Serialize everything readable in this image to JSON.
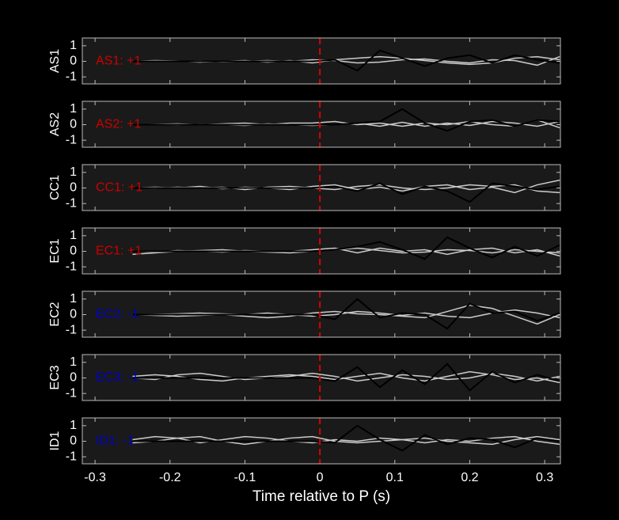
{
  "chart_data": [
    {
      "type": "line",
      "ylabel": "AS1",
      "annotation": "AS1: +1",
      "annotation_color": "#cc0000",
      "vline": 0,
      "x": [
        -0.25,
        -0.22,
        -0.19,
        -0.16,
        -0.13,
        -0.1,
        -0.07,
        -0.04,
        -0.01,
        0.02,
        0.05,
        0.08,
        0.11,
        0.14,
        0.17,
        0.2,
        0.23,
        0.26,
        0.29,
        0.32
      ],
      "series": [
        {
          "color": "#cccccc",
          "values": [
            0,
            0.05,
            0.02,
            -0.05,
            0,
            0.05,
            -0.05,
            0.05,
            -0.1,
            0.1,
            0.2,
            0.3,
            0.2,
            0.05,
            -0.1,
            -0.2,
            -0.1,
            0.2,
            0.3,
            0.1
          ]
        },
        {
          "color": "#cccccc",
          "values": [
            0,
            0.02,
            0,
            0.02,
            -0.03,
            0,
            0.05,
            0,
            0.1,
            0.05,
            -0.1,
            -0.05,
            0.1,
            0.15,
            0,
            -0.1,
            0.1,
            0.05,
            -0.25,
            0.3
          ]
        },
        {
          "color": "#000000",
          "values": [
            0,
            0,
            0,
            0,
            0,
            0,
            0,
            0,
            0,
            0.1,
            -0.6,
            0.7,
            0.2,
            -0.3,
            0.2,
            0.4,
            -0.1,
            0.4,
            0.1,
            -0.1
          ]
        }
      ],
      "xlim": [
        -0.317,
        0.321
      ],
      "xticks": [
        -0.3,
        -0.2,
        -0.1,
        0,
        0.1,
        0.2,
        0.3
      ],
      "ylim": [
        -1.45,
        1.5
      ],
      "yticks": [
        -1,
        0,
        1
      ]
    },
    {
      "type": "line",
      "ylabel": "AS2",
      "annotation": "AS2: +1",
      "annotation_color": "#cc0000",
      "vline": 0,
      "x": [
        -0.25,
        -0.22,
        -0.19,
        -0.16,
        -0.13,
        -0.1,
        -0.07,
        -0.04,
        -0.01,
        0.02,
        0.05,
        0.08,
        0.11,
        0.14,
        0.17,
        0.2,
        0.23,
        0.26,
        0.29,
        0.32
      ],
      "series": [
        {
          "color": "#cccccc",
          "values": [
            0,
            0.02,
            0.05,
            0,
            0.05,
            0.1,
            0,
            0.1,
            0.1,
            0.2,
            0,
            0.1,
            -0.1,
            0.1,
            0,
            0.2,
            0,
            -0.1,
            0.3,
            -0.2
          ]
        },
        {
          "color": "#cccccc",
          "values": [
            0,
            0,
            -0.02,
            0.02,
            0,
            -0.05,
            0.05,
            0,
            -0.05,
            0,
            0.1,
            -0.1,
            0.15,
            -0.1,
            0.1,
            -0.05,
            0.2,
            0.1,
            -0.1,
            0.2
          ]
        },
        {
          "color": "#000000",
          "values": [
            0,
            0,
            0,
            0,
            0,
            0,
            0,
            0,
            0,
            0,
            0.1,
            0.2,
            1,
            0.1,
            -0.4,
            0.2,
            0.3,
            -0.1,
            0.3,
            0.2
          ]
        }
      ],
      "xlim": [
        -0.317,
        0.321
      ],
      "xticks": [
        -0.3,
        -0.2,
        -0.1,
        0,
        0.1,
        0.2,
        0.3
      ],
      "ylim": [
        -1.45,
        1.5
      ],
      "yticks": [
        -1,
        0,
        1
      ]
    },
    {
      "type": "line",
      "ylabel": "CC1",
      "annotation": "CC1: +1",
      "annotation_color": "#cc0000",
      "vline": 0,
      "x": [
        -0.25,
        -0.22,
        -0.19,
        -0.16,
        -0.13,
        -0.1,
        -0.07,
        -0.04,
        -0.01,
        0.02,
        0.05,
        0.08,
        0.11,
        0.14,
        0.17,
        0.2,
        0.23,
        0.26,
        0.29,
        0.32
      ],
      "series": [
        {
          "color": "#cccccc",
          "values": [
            0,
            0.05,
            0,
            0.1,
            -0.05,
            0.05,
            0,
            -0.1,
            0.1,
            0.2,
            -0.1,
            0.05,
            -0.2,
            0.1,
            0.2,
            -0.1,
            0.05,
            -0.3,
            0.2,
            0.5
          ]
        },
        {
          "color": "#cccccc",
          "values": [
            0,
            -0.02,
            0.05,
            0,
            0.05,
            -0.1,
            0.05,
            0.1,
            0,
            -0.1,
            0.1,
            0.2,
            0,
            -0.1,
            0,
            0.2,
            0.1,
            0.2,
            -0.2,
            -0.3
          ]
        },
        {
          "color": "#000000",
          "values": [
            0,
            0,
            0,
            0,
            0,
            0,
            0,
            0,
            0,
            0.1,
            -0.2,
            0.3,
            -0.4,
            0.1,
            -0.2,
            -0.9,
            0.3,
            0.1,
            -0.1,
            0.1
          ]
        }
      ],
      "xlim": [
        -0.317,
        0.321
      ],
      "xticks": [
        -0.3,
        -0.2,
        -0.1,
        0,
        0.1,
        0.2,
        0.3
      ],
      "ylim": [
        -1.45,
        1.5
      ],
      "yticks": [
        -1,
        0,
        1
      ]
    },
    {
      "type": "line",
      "ylabel": "EC1",
      "annotation": "EC1: +1",
      "annotation_color": "#cc0000",
      "vline": 0,
      "x": [
        -0.25,
        -0.22,
        -0.19,
        -0.16,
        -0.13,
        -0.1,
        -0.07,
        -0.04,
        -0.01,
        0.02,
        0.05,
        0.08,
        0.11,
        0.14,
        0.17,
        0.2,
        0.23,
        0.26,
        0.29,
        0.32
      ],
      "series": [
        {
          "color": "#cccccc",
          "values": [
            -0.2,
            -0.1,
            0,
            0.05,
            0.1,
            0,
            -0.05,
            -0.1,
            0,
            0.1,
            0.2,
            0.05,
            -0.1,
            -0.05,
            0.1,
            0.05,
            -0.1,
            0.1,
            0,
            -0.1
          ]
        },
        {
          "color": "#cccccc",
          "values": [
            0,
            -0.05,
            0.05,
            0,
            -0.05,
            0.05,
            0,
            0,
            0.1,
            0.2,
            -0.1,
            0.2,
            0,
            0.1,
            -0.2,
            0.1,
            0.2,
            -0.1,
            0.1,
            -0.3
          ]
        },
        {
          "color": "#000000",
          "values": [
            0,
            0,
            0,
            0,
            0,
            0,
            0,
            0,
            0,
            0.1,
            0.3,
            0.6,
            0.1,
            -0.5,
            0.9,
            0.2,
            -0.4,
            0.3,
            -0.3,
            0.4
          ]
        }
      ],
      "xlim": [
        -0.317,
        0.321
      ],
      "xticks": [
        -0.3,
        -0.2,
        -0.1,
        0,
        0.1,
        0.2,
        0.3
      ],
      "ylim": [
        -1.45,
        1.5
      ],
      "yticks": [
        -1,
        0,
        1
      ]
    },
    {
      "type": "line",
      "ylabel": "EC2",
      "annotation": "EC2: -1",
      "annotation_color": "#0000cc",
      "vline": 0,
      "x": [
        -0.25,
        -0.22,
        -0.19,
        -0.16,
        -0.13,
        -0.1,
        -0.07,
        -0.04,
        -0.01,
        0.02,
        0.05,
        0.08,
        0.11,
        0.14,
        0.17,
        0.2,
        0.23,
        0.26,
        0.29,
        0.32
      ],
      "series": [
        {
          "color": "#cccccc",
          "values": [
            0,
            -0.05,
            -0.1,
            -0.05,
            0,
            -0.1,
            -0.2,
            -0.1,
            0.1,
            0.2,
            0.05,
            0,
            -0.1,
            -0.2,
            0.2,
            0.6,
            0.4,
            -0.1,
            -0.6,
            0
          ]
        },
        {
          "color": "#cccccc",
          "values": [
            0,
            0.02,
            0.05,
            0.1,
            0.05,
            0,
            0.1,
            0,
            -0.1,
            0,
            0.2,
            0.1,
            -0.05,
            0.1,
            -0.1,
            -0.2,
            0.1,
            0.3,
            0.1,
            -0.2
          ]
        },
        {
          "color": "#000000",
          "values": [
            0,
            0,
            0,
            0,
            0,
            0,
            0,
            0,
            0,
            -0.3,
            1,
            -0.2,
            0.1,
            0,
            -0.9,
            0.7,
            0.1,
            0.2,
            -0.4,
            0.1
          ]
        }
      ],
      "xlim": [
        -0.317,
        0.321
      ],
      "xticks": [
        -0.3,
        -0.2,
        -0.1,
        0,
        0.1,
        0.2,
        0.3
      ],
      "ylim": [
        -1.45,
        1.5
      ],
      "yticks": [
        -1,
        0,
        1
      ]
    },
    {
      "type": "line",
      "ylabel": "EC3",
      "annotation": "EC3: -1",
      "annotation_color": "#0000cc",
      "vline": 0,
      "x": [
        -0.25,
        -0.22,
        -0.19,
        -0.16,
        -0.13,
        -0.1,
        -0.07,
        -0.04,
        -0.01,
        0.02,
        0.05,
        0.08,
        0.11,
        0.14,
        0.17,
        0.2,
        0.23,
        0.26,
        0.29,
        0.32
      ],
      "series": [
        {
          "color": "#cccccc",
          "values": [
            0.1,
            0.2,
            0.1,
            -0.1,
            -0.2,
            0,
            0.1,
            0.2,
            0.1,
            -0.1,
            0.1,
            0.3,
            0,
            -0.2,
            0.1,
            0.4,
            0.2,
            -0.1,
            0,
            -0.3
          ]
        },
        {
          "color": "#cccccc",
          "values": [
            0,
            -0.1,
            0.2,
            0.3,
            0.1,
            -0.1,
            0,
            0.1,
            0.3,
            0.1,
            -0.2,
            0,
            0.2,
            0.1,
            -0.1,
            0,
            0.3,
            0.1,
            -0.2,
            0.1
          ]
        },
        {
          "color": "#000000",
          "values": [
            0,
            0,
            0,
            0,
            0,
            0,
            0,
            0,
            0,
            -0.2,
            0.7,
            -0.6,
            0.5,
            -0.4,
            0.9,
            -0.8,
            0.4,
            -0.3,
            0.2,
            -0.2
          ]
        }
      ],
      "xlim": [
        -0.317,
        0.321
      ],
      "xticks": [
        -0.3,
        -0.2,
        -0.1,
        0,
        0.1,
        0.2,
        0.3
      ],
      "ylim": [
        -1.45,
        1.5
      ],
      "yticks": [
        -1,
        0,
        1
      ]
    },
    {
      "type": "line",
      "ylabel": "ID1",
      "annotation": "ID1: -1",
      "annotation_color": "#0000cc",
      "vline": 0,
      "xlabel": "Time relative to P (s)",
      "x": [
        -0.25,
        -0.22,
        -0.19,
        -0.16,
        -0.13,
        -0.1,
        -0.07,
        -0.04,
        -0.01,
        0.02,
        0.05,
        0.08,
        0.11,
        0.14,
        0.17,
        0.2,
        0.23,
        0.26,
        0.29,
        0.32
      ],
      "series": [
        {
          "color": "#cccccc",
          "values": [
            0.1,
            0.3,
            0.2,
            -0.1,
            0.1,
            0.3,
            0.2,
            0,
            -0.1,
            0.1,
            0,
            0.2,
            0.1,
            -0.1,
            0.1,
            0,
            0.2,
            0.3,
            0,
            -0.2
          ]
        },
        {
          "color": "#cccccc",
          "values": [
            -0.1,
            0,
            0.2,
            0.3,
            0,
            -0.2,
            0,
            0.2,
            0.3,
            0,
            -0.1,
            0,
            0.1,
            0.2,
            0,
            -0.1,
            -0.2,
            0.1,
            0.3,
            0.1
          ]
        },
        {
          "color": "#000000",
          "values": [
            0,
            0,
            0,
            0,
            0,
            0,
            0,
            0,
            0,
            -0.1,
            1,
            0.1,
            -0.6,
            0.4,
            -0.2,
            0.2,
            0.1,
            -0.4,
            0.2,
            0
          ]
        }
      ],
      "xlim": [
        -0.317,
        0.321
      ],
      "xticks": [
        -0.3,
        -0.2,
        -0.1,
        0,
        0.1,
        0.2,
        0.3
      ],
      "ylim": [
        -1.45,
        1.5
      ],
      "yticks": [
        -1,
        0,
        1
      ]
    }
  ]
}
